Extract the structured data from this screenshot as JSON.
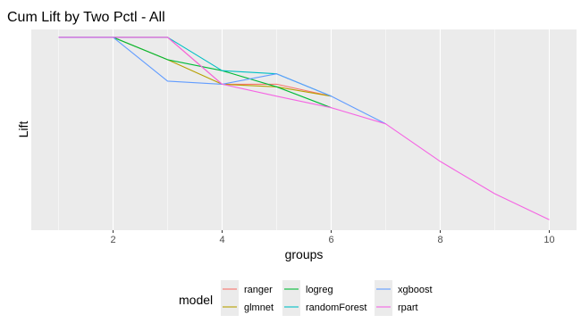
{
  "chart_data": {
    "type": "line",
    "title": "Cum Lift by Two Pctl - All",
    "xlabel": "groups",
    "ylabel": "Lift",
    "xlim": [
      0.5,
      10.5
    ],
    "ylim": [
      0.8,
      4.65
    ],
    "x_ticks": [
      2,
      4,
      6,
      8,
      10
    ],
    "y_ticks_visible": false,
    "grid": true,
    "legend": {
      "title": "model",
      "placement": "bottom"
    },
    "series": [
      {
        "name": "ranger",
        "color": "#F8766D",
        "x": [
          1,
          2,
          3,
          4,
          5,
          6
        ],
        "y": [
          4.5,
          4.5,
          4.5,
          3.6,
          3.6,
          3.37
        ]
      },
      {
        "name": "glmnet",
        "color": "#B79F00",
        "x": [
          1,
          2,
          3,
          4,
          5,
          6
        ],
        "y": [
          4.5,
          4.5,
          4.07,
          3.6,
          3.55,
          3.37
        ]
      },
      {
        "name": "logreg",
        "color": "#00BA38",
        "x": [
          1,
          2,
          3,
          4,
          5,
          6
        ],
        "y": [
          4.5,
          4.5,
          4.07,
          3.86,
          3.55,
          3.15
        ]
      },
      {
        "name": "randomForest",
        "color": "#00BFC4",
        "x": [
          1,
          2,
          3,
          4,
          5,
          6
        ],
        "y": [
          4.5,
          4.5,
          4.5,
          3.86,
          3.8,
          3.37
        ]
      },
      {
        "name": "xgboost",
        "color": "#619CFF",
        "x": [
          1,
          2,
          3,
          4,
          5,
          6,
          7
        ],
        "y": [
          4.5,
          4.5,
          3.66,
          3.6,
          3.8,
          3.37,
          2.84
        ]
      },
      {
        "name": "rpart",
        "color": "#F564E3",
        "x": [
          1,
          2,
          3,
          4,
          5,
          6,
          7,
          8,
          9,
          10
        ],
        "y": [
          4.5,
          4.5,
          4.5,
          3.6,
          3.37,
          3.15,
          2.84,
          2.12,
          1.5,
          1.0
        ]
      }
    ]
  }
}
